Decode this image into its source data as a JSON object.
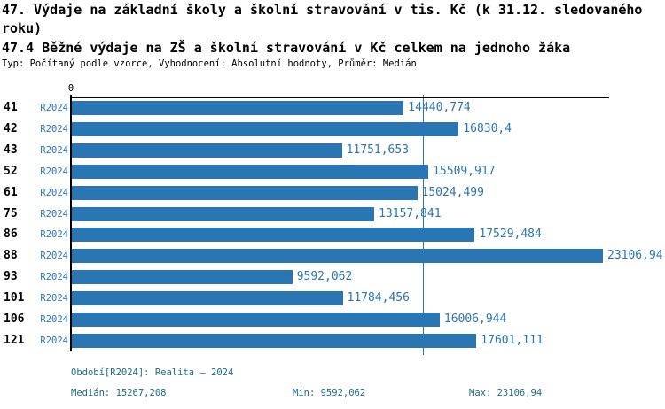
{
  "header": {
    "title": "47. Výdaje na základní školy a školní stravování v tis. Kč (k 31.12. sledovaného roku)",
    "subtitle": "47.4 Běžné výdaje na ZŠ a školní stravování v Kč celkem na jednoho žáka",
    "meta": "Typ: Počítaný podle vzorce, Vyhodnocení: Absolutní hodnoty, Průměr: Medián"
  },
  "chart_data": {
    "type": "bar",
    "orientation": "horizontal",
    "title": "47.4 Běžné výdaje na ZŠ a školní stravování v Kč celkem na jednoho žáka",
    "categories": [
      "41",
      "42",
      "43",
      "52",
      "61",
      "75",
      "86",
      "88",
      "93",
      "101",
      "106",
      "121"
    ],
    "series": [
      {
        "name": "R2024",
        "values": [
          14440.774,
          16830.4,
          11751.653,
          15509.917,
          15024.499,
          13157.841,
          17529.484,
          23106.94,
          9592.062,
          11784.456,
          16006.944,
          17601.111
        ]
      }
    ],
    "value_labels": [
      "14440,774",
      "16830,4",
      "11751,653",
      "15509,917",
      "15024,499",
      "13157,841",
      "17529,484",
      "23106,94",
      "9592,062",
      "11784,456",
      "16006,944",
      "17601,111"
    ],
    "axis": {
      "min": 0,
      "zero_label": "0",
      "grid": false
    },
    "median_line": true,
    "stats": {
      "median": 15267.208,
      "min": 9592.062,
      "max": 23106.94
    },
    "legend_position": "none"
  },
  "footer": {
    "period": "Období[R2024]: Realita – 2024",
    "median": "Medián: 15267,208",
    "min": "Min: 9592,062",
    "max": "Max: 23106,94"
  },
  "colors": {
    "bar": "#2a76b3",
    "median_line": "#2a76b3",
    "value_label": "#2a76b3",
    "series_label": "#2a76b3",
    "footer_text": "#1c6b8a",
    "title_text": "#000000",
    "axis": "#000000"
  }
}
